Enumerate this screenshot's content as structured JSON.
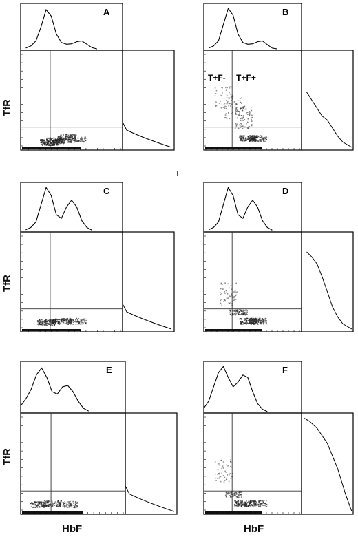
{
  "figure": {
    "ylabel": "TfR",
    "xlabel": "HbF"
  },
  "chart_data": [
    {
      "panel": "A",
      "type": "scatter",
      "title": "A",
      "quadrant_labels": [],
      "hbf_histogram": [
        [
          0.05,
          0.05
        ],
        [
          0.1,
          0.1
        ],
        [
          0.15,
          0.22
        ],
        [
          0.2,
          0.55
        ],
        [
          0.25,
          0.95
        ],
        [
          0.3,
          0.8
        ],
        [
          0.35,
          0.38
        ],
        [
          0.4,
          0.18
        ],
        [
          0.45,
          0.14
        ],
        [
          0.5,
          0.15
        ],
        [
          0.55,
          0.2
        ],
        [
          0.6,
          0.22
        ],
        [
          0.65,
          0.14
        ],
        [
          0.7,
          0.06
        ],
        [
          0.75,
          0.03
        ]
      ],
      "tfr_histogram": [],
      "density": [
        [
          0.28,
          0.03,
          0.9
        ],
        [
          0.34,
          0.05,
          0.7
        ],
        [
          0.45,
          0.08,
          0.6
        ],
        [
          0.55,
          0.06,
          0.5
        ]
      ]
    },
    {
      "panel": "B",
      "type": "scatter",
      "title": "B",
      "quadrant_labels": [
        "T+F-",
        "T+F+"
      ],
      "hbf_histogram": [
        [
          0.05,
          0.05
        ],
        [
          0.1,
          0.1
        ],
        [
          0.15,
          0.22
        ],
        [
          0.2,
          0.6
        ],
        [
          0.25,
          0.98
        ],
        [
          0.3,
          0.82
        ],
        [
          0.35,
          0.38
        ],
        [
          0.4,
          0.18
        ],
        [
          0.45,
          0.14
        ],
        [
          0.5,
          0.15
        ],
        [
          0.55,
          0.2
        ],
        [
          0.6,
          0.22
        ],
        [
          0.65,
          0.13
        ],
        [
          0.7,
          0.05
        ],
        [
          0.75,
          0.03
        ]
      ],
      "tfr_histogram": [
        [
          0.1,
          0.42
        ],
        [
          0.2,
          0.5
        ],
        [
          0.3,
          0.58
        ],
        [
          0.4,
          0.66
        ],
        [
          0.5,
          0.7
        ],
        [
          0.6,
          0.78
        ],
        [
          0.7,
          0.86
        ],
        [
          0.8,
          0.92
        ]
      ],
      "density": [
        [
          0.2,
          0.4,
          0.25
        ],
        [
          0.3,
          0.3,
          0.35
        ],
        [
          0.4,
          0.2,
          0.45
        ],
        [
          0.45,
          0.07,
          0.7
        ],
        [
          0.55,
          0.07,
          0.6
        ]
      ]
    },
    {
      "panel": "C",
      "type": "scatter",
      "title": "C",
      "quadrant_labels": [],
      "hbf_histogram": [
        [
          0.05,
          0.05
        ],
        [
          0.1,
          0.1
        ],
        [
          0.15,
          0.22
        ],
        [
          0.2,
          0.6
        ],
        [
          0.25,
          0.98
        ],
        [
          0.3,
          0.8
        ],
        [
          0.35,
          0.38
        ],
        [
          0.4,
          0.3
        ],
        [
          0.45,
          0.55
        ],
        [
          0.5,
          0.7
        ],
        [
          0.55,
          0.55
        ],
        [
          0.6,
          0.25
        ],
        [
          0.65,
          0.1
        ],
        [
          0.7,
          0.04
        ]
      ],
      "tfr_histogram": [],
      "density": [
        [
          0.25,
          0.05,
          0.7
        ],
        [
          0.4,
          0.06,
          0.7
        ],
        [
          0.55,
          0.06,
          0.5
        ]
      ]
    },
    {
      "panel": "D",
      "type": "scatter",
      "title": "D",
      "quadrant_labels": [],
      "hbf_histogram": [
        [
          0.05,
          0.05
        ],
        [
          0.1,
          0.1
        ],
        [
          0.15,
          0.22
        ],
        [
          0.2,
          0.6
        ],
        [
          0.25,
          0.98
        ],
        [
          0.3,
          0.8
        ],
        [
          0.35,
          0.38
        ],
        [
          0.4,
          0.3
        ],
        [
          0.45,
          0.55
        ],
        [
          0.5,
          0.7
        ],
        [
          0.55,
          0.55
        ],
        [
          0.6,
          0.25
        ],
        [
          0.65,
          0.1
        ],
        [
          0.7,
          0.04
        ]
      ],
      "tfr_histogram": [
        [
          0.1,
          0.2
        ],
        [
          0.2,
          0.25
        ],
        [
          0.3,
          0.32
        ],
        [
          0.4,
          0.45
        ],
        [
          0.5,
          0.6
        ],
        [
          0.6,
          0.75
        ],
        [
          0.7,
          0.85
        ],
        [
          0.8,
          0.92
        ]
      ],
      "density": [
        [
          0.25,
          0.25,
          0.35
        ],
        [
          0.35,
          0.15,
          0.5
        ],
        [
          0.45,
          0.06,
          0.7
        ],
        [
          0.55,
          0.06,
          0.6
        ]
      ]
    },
    {
      "panel": "E",
      "type": "scatter",
      "title": "E",
      "quadrant_labels": [],
      "hbf_histogram": [
        [
          0.0,
          0.15
        ],
        [
          0.05,
          0.3
        ],
        [
          0.1,
          0.5
        ],
        [
          0.15,
          0.8
        ],
        [
          0.2,
          0.95
        ],
        [
          0.25,
          0.75
        ],
        [
          0.3,
          0.45
        ],
        [
          0.35,
          0.4
        ],
        [
          0.4,
          0.55
        ],
        [
          0.45,
          0.58
        ],
        [
          0.5,
          0.45
        ],
        [
          0.55,
          0.25
        ],
        [
          0.6,
          0.1
        ],
        [
          0.65,
          0.04
        ]
      ],
      "tfr_histogram": [],
      "density": [
        [
          0.18,
          0.05,
          0.6
        ],
        [
          0.3,
          0.06,
          0.5
        ],
        [
          0.45,
          0.05,
          0.5
        ]
      ]
    },
    {
      "panel": "F",
      "type": "scatter",
      "title": "F",
      "quadrant_labels": [],
      "hbf_histogram": [
        [
          0.0,
          0.1
        ],
        [
          0.05,
          0.25
        ],
        [
          0.1,
          0.55
        ],
        [
          0.15,
          0.85
        ],
        [
          0.2,
          0.98
        ],
        [
          0.25,
          0.75
        ],
        [
          0.3,
          0.55
        ],
        [
          0.35,
          0.65
        ],
        [
          0.4,
          0.8
        ],
        [
          0.45,
          0.75
        ],
        [
          0.5,
          0.45
        ],
        [
          0.55,
          0.2
        ],
        [
          0.6,
          0.08
        ],
        [
          0.65,
          0.03
        ]
      ],
      "tfr_histogram": [
        [
          0.05,
          0.05
        ],
        [
          0.15,
          0.08
        ],
        [
          0.3,
          0.15
        ],
        [
          0.5,
          0.3
        ],
        [
          0.7,
          0.55
        ],
        [
          0.85,
          0.8
        ]
      ],
      "density": [
        [
          0.2,
          0.3,
          0.3
        ],
        [
          0.3,
          0.15,
          0.45
        ],
        [
          0.4,
          0.06,
          0.7
        ],
        [
          0.55,
          0.06,
          0.55
        ]
      ]
    }
  ]
}
